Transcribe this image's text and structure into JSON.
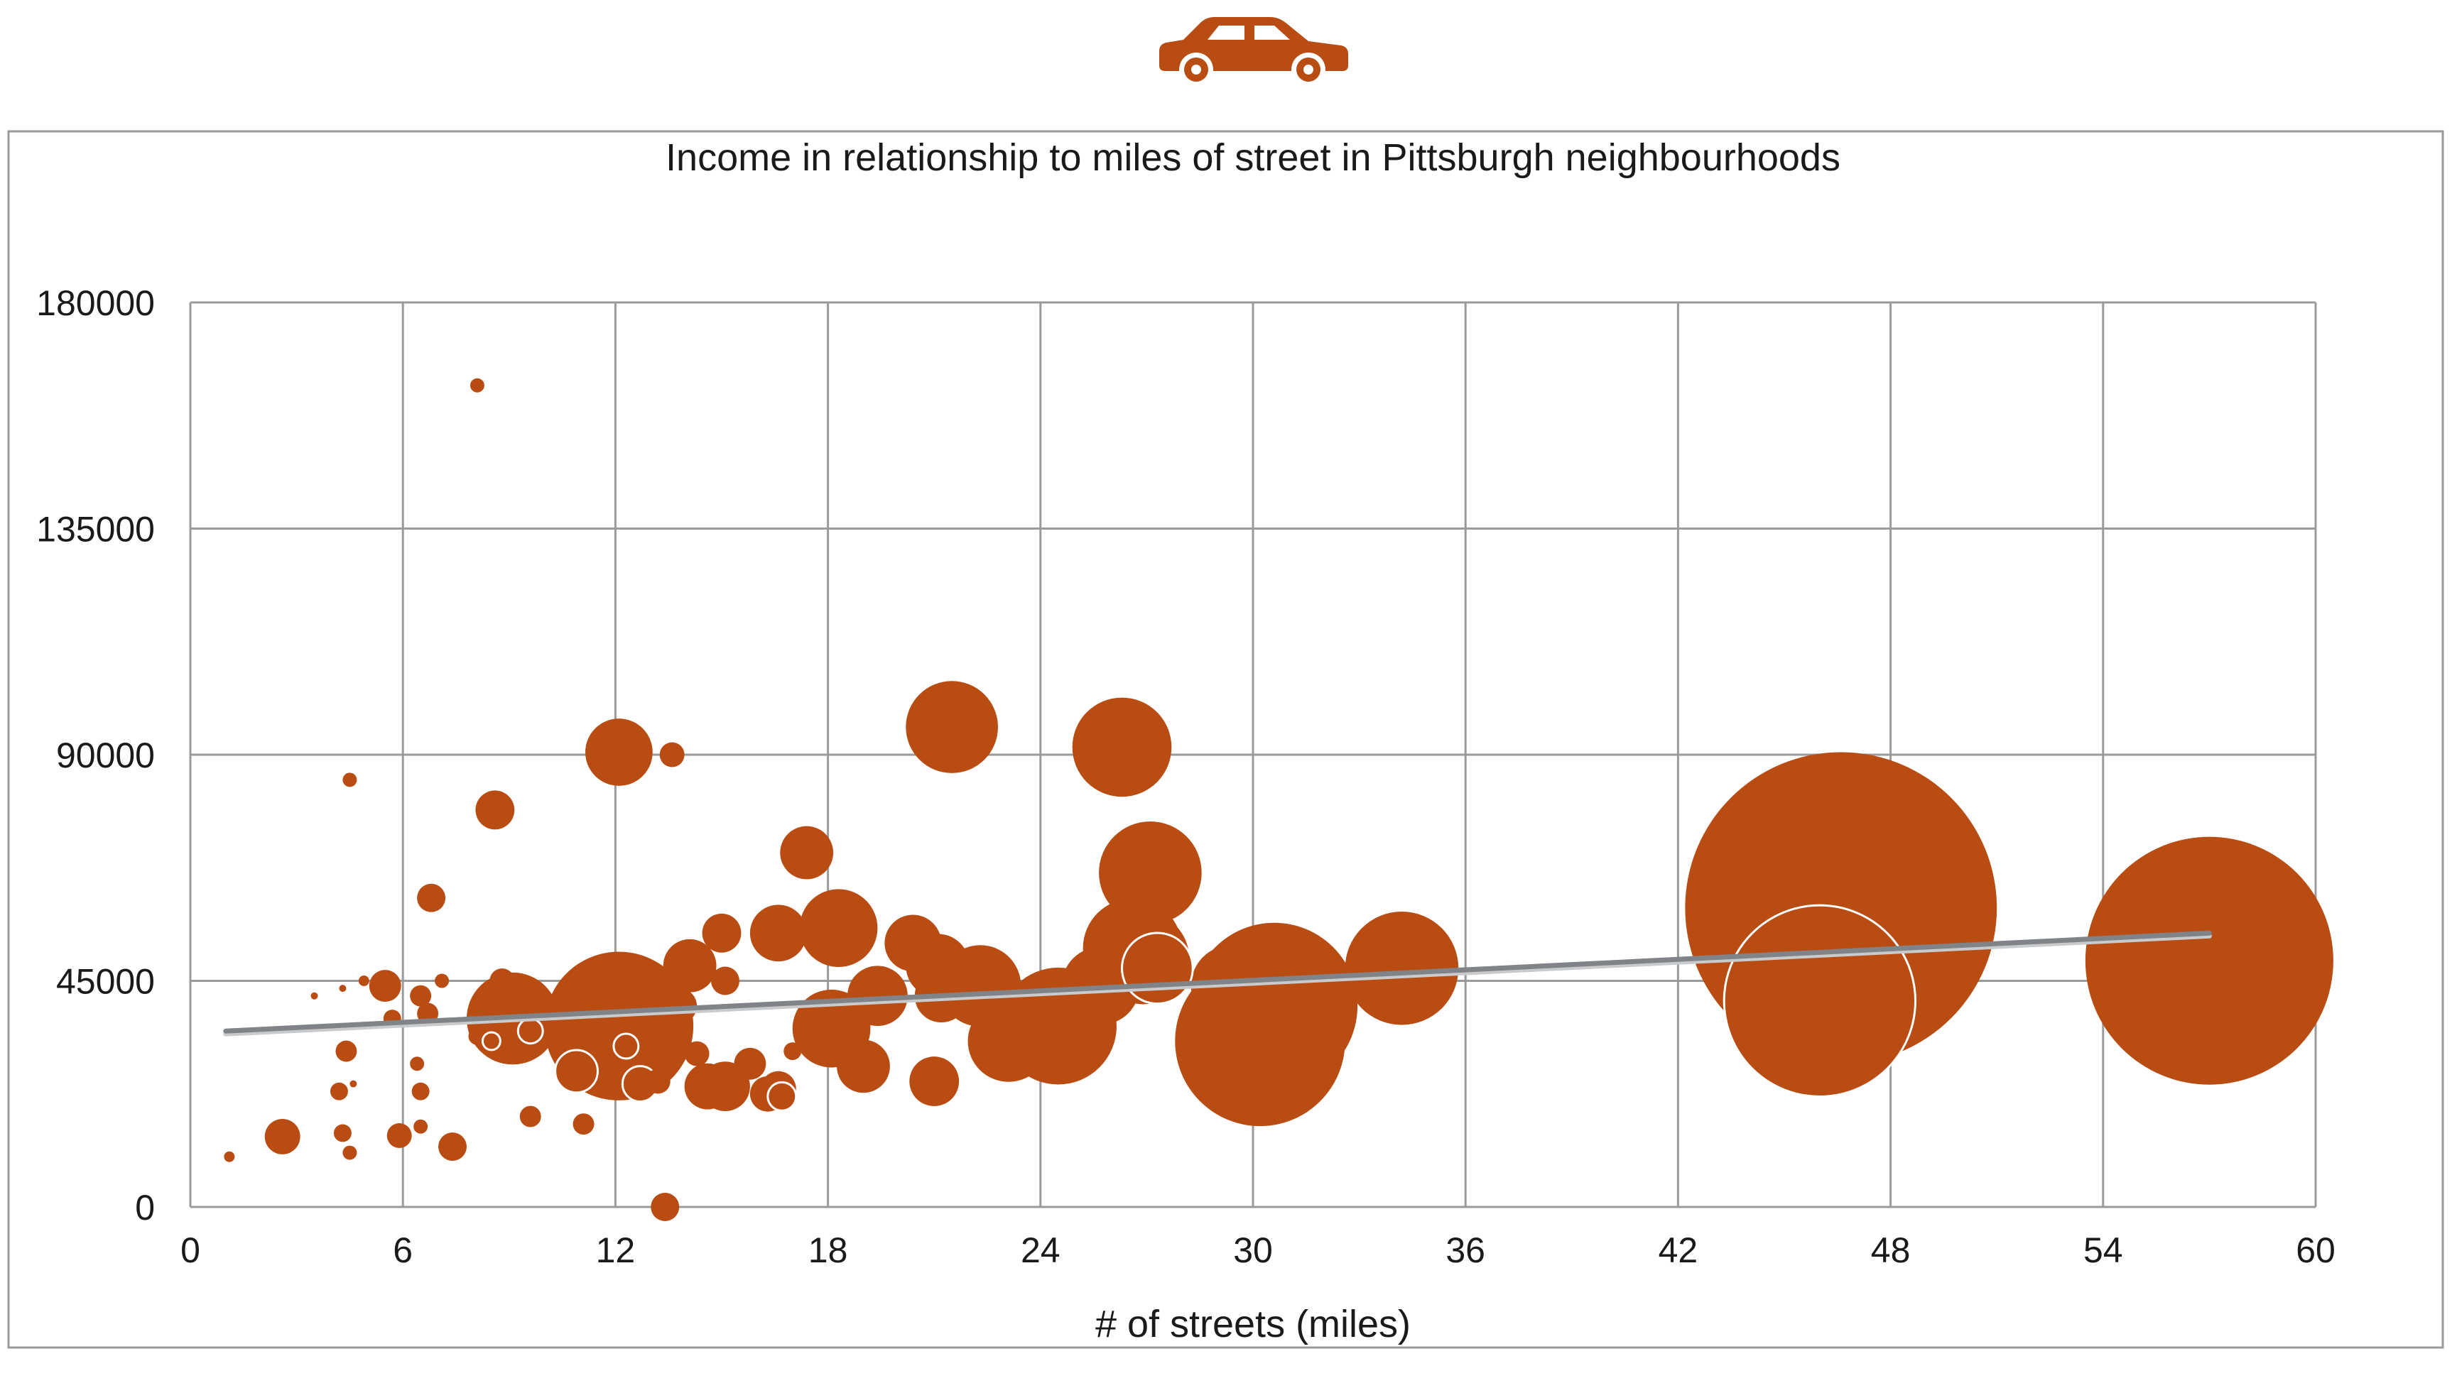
{
  "accent_color": "#b94c13",
  "trend_color": "#808488",
  "header_icon": "car-icon",
  "chart_data": {
    "type": "scatter",
    "variant": "bubble",
    "title": "Income in relationship to miles of street in Pittsburgh neighbourhoods",
    "xlabel": "# of streets (miles)",
    "ylabel": "",
    "xlim": [
      0,
      60
    ],
    "ylim": [
      0,
      180000
    ],
    "x_ticks": [
      "0",
      "6",
      "12",
      "18",
      "24",
      "30",
      "36",
      "42",
      "48",
      "54",
      "60"
    ],
    "y_ticks": [
      "0",
      "45000",
      "90000",
      "135000",
      "180000"
    ],
    "grid": true,
    "legend": "none",
    "trendline": {
      "x": [
        1,
        57
      ],
      "y": [
        35000,
        54500
      ]
    },
    "points": [
      {
        "x": 1.1,
        "y": 10000,
        "r": 0.15
      },
      {
        "x": 2.6,
        "y": 14000,
        "r": 0.5
      },
      {
        "x": 3.5,
        "y": 42000,
        "r": 0.1
      },
      {
        "x": 4.2,
        "y": 23000,
        "r": 0.25
      },
      {
        "x": 4.3,
        "y": 14700,
        "r": 0.25
      },
      {
        "x": 4.3,
        "y": 43500,
        "r": 0.1
      },
      {
        "x": 4.4,
        "y": 31000,
        "r": 0.3
      },
      {
        "x": 4.5,
        "y": 10800,
        "r": 0.2
      },
      {
        "x": 4.5,
        "y": 85000,
        "r": 0.2
      },
      {
        "x": 4.6,
        "y": 24500,
        "r": 0.1
      },
      {
        "x": 4.9,
        "y": 45000,
        "r": 0.15
      },
      {
        "x": 5.5,
        "y": 44000,
        "r": 0.45
      },
      {
        "x": 5.7,
        "y": 37500,
        "r": 0.25
      },
      {
        "x": 5.9,
        "y": 14200,
        "r": 0.35
      },
      {
        "x": 6.4,
        "y": 28500,
        "r": 0.2
      },
      {
        "x": 6.5,
        "y": 16000,
        "r": 0.2
      },
      {
        "x": 6.5,
        "y": 23000,
        "r": 0.25
      },
      {
        "x": 6.5,
        "y": 42000,
        "r": 0.3
      },
      {
        "x": 6.7,
        "y": 38500,
        "r": 0.3
      },
      {
        "x": 6.8,
        "y": 61500,
        "r": 0.4
      },
      {
        "x": 7.1,
        "y": 45000,
        "r": 0.2
      },
      {
        "x": 7.4,
        "y": 12000,
        "r": 0.4
      },
      {
        "x": 8.1,
        "y": 34000,
        "r": 0.25
      },
      {
        "x": 8.1,
        "y": 163500,
        "r": 0.2
      },
      {
        "x": 8.5,
        "y": 33000,
        "r": 0.25,
        "outline": true
      },
      {
        "x": 8.6,
        "y": 79000,
        "r": 0.55
      },
      {
        "x": 8.8,
        "y": 45000,
        "r": 0.35
      },
      {
        "x": 9.1,
        "y": 37500,
        "r": 1.3
      },
      {
        "x": 9.6,
        "y": 18000,
        "r": 0.3
      },
      {
        "x": 9.6,
        "y": 35000,
        "r": 0.35,
        "outline": true
      },
      {
        "x": 10.9,
        "y": 27000,
        "r": 0.6,
        "outline": true
      },
      {
        "x": 11.1,
        "y": 16500,
        "r": 0.3
      },
      {
        "x": 12.1,
        "y": 90500,
        "r": 0.95
      },
      {
        "x": 12.1,
        "y": 36000,
        "r": 2.1
      },
      {
        "x": 12.3,
        "y": 32000,
        "r": 0.35,
        "outline": true
      },
      {
        "x": 12.7,
        "y": 24500,
        "r": 0.5,
        "outline": true
      },
      {
        "x": 13.2,
        "y": 25000,
        "r": 0.35
      },
      {
        "x": 13.4,
        "y": 0,
        "r": 0.4
      },
      {
        "x": 13.6,
        "y": 90000,
        "r": 0.35
      },
      {
        "x": 13.8,
        "y": 40000,
        "r": 0.5
      },
      {
        "x": 14.1,
        "y": 48000,
        "r": 0.75
      },
      {
        "x": 14.3,
        "y": 30500,
        "r": 0.35
      },
      {
        "x": 14.6,
        "y": 24000,
        "r": 0.65
      },
      {
        "x": 15.0,
        "y": 54500,
        "r": 0.55
      },
      {
        "x": 15.1,
        "y": 45000,
        "r": 0.4
      },
      {
        "x": 15.1,
        "y": 24000,
        "r": 0.7
      },
      {
        "x": 15.8,
        "y": 28500,
        "r": 0.45
      },
      {
        "x": 16.3,
        "y": 22500,
        "r": 0.5
      },
      {
        "x": 16.6,
        "y": 54500,
        "r": 0.8
      },
      {
        "x": 16.6,
        "y": 23500,
        "r": 0.5
      },
      {
        "x": 16.7,
        "y": 22000,
        "r": 0.4,
        "outline": true
      },
      {
        "x": 17.0,
        "y": 31000,
        "r": 0.25
      },
      {
        "x": 17.4,
        "y": 70500,
        "r": 0.75
      },
      {
        "x": 17.7,
        "y": 38000,
        "r": 0.5
      },
      {
        "x": 18.3,
        "y": 55500,
        "r": 1.1
      },
      {
        "x": 18.1,
        "y": 35500,
        "r": 1.1
      },
      {
        "x": 19.4,
        "y": 42000,
        "r": 0.85
      },
      {
        "x": 19.0,
        "y": 28000,
        "r": 0.75
      },
      {
        "x": 20.4,
        "y": 52500,
        "r": 0.8
      },
      {
        "x": 21.1,
        "y": 48000,
        "r": 0.9
      },
      {
        "x": 21.2,
        "y": 42000,
        "r": 0.75
      },
      {
        "x": 21.0,
        "y": 25000,
        "r": 0.7
      },
      {
        "x": 21.5,
        "y": 95500,
        "r": 1.3
      },
      {
        "x": 22.3,
        "y": 44000,
        "r": 1.15
      },
      {
        "x": 22.6,
        "y": 41500,
        "r": 0.9
      },
      {
        "x": 23.1,
        "y": 33000,
        "r": 1.15
      },
      {
        "x": 24.5,
        "y": 36000,
        "r": 1.65
      },
      {
        "x": 25.7,
        "y": 44000,
        "r": 1.1
      },
      {
        "x": 26.3,
        "y": 91500,
        "r": 1.4
      },
      {
        "x": 26.6,
        "y": 51500,
        "r": 1.4
      },
      {
        "x": 26.9,
        "y": 49500,
        "r": 1.3
      },
      {
        "x": 27.1,
        "y": 66500,
        "r": 1.45
      },
      {
        "x": 27.3,
        "y": 47500,
        "r": 1.0,
        "outline": true
      },
      {
        "x": 29.4,
        "y": 44000,
        "r": 1.15
      },
      {
        "x": 30.6,
        "y": 40000,
        "r": 2.35
      },
      {
        "x": 30.2,
        "y": 33000,
        "r": 2.4
      },
      {
        "x": 34.2,
        "y": 47500,
        "r": 1.6
      },
      {
        "x": 46.6,
        "y": 59500,
        "r": 4.4
      },
      {
        "x": 46.0,
        "y": 41000,
        "r": 2.7,
        "outline": true
      },
      {
        "x": 57.0,
        "y": 49000,
        "r": 3.5
      }
    ]
  }
}
